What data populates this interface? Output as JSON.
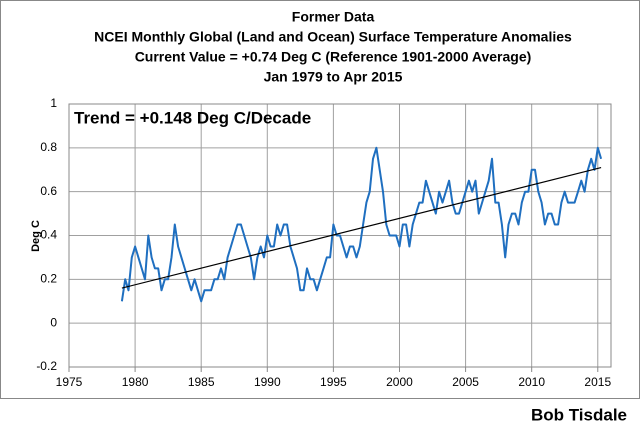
{
  "chart_data": {
    "type": "line",
    "title": [
      "Former Data",
      "NCEI Monthly Global (Land and Ocean) Surface Temperature Anomalies",
      "Current Value = +0.74 Deg C (Reference 1901-2000 Average)",
      "Jan 1979 to Apr 2015"
    ],
    "annotation": "Trend = +0.148 Deg C/Decade",
    "ylabel": "Deg C",
    "credit": "Bob Tisdale",
    "xlim": [
      1975,
      2016
    ],
    "xticks": [
      1975,
      1980,
      1985,
      1990,
      1995,
      2000,
      2005,
      2010,
      2015
    ],
    "ylim": [
      -0.2,
      1
    ],
    "yticks": [
      -0.2,
      0,
      0.2,
      0.4,
      0.6,
      0.8,
      1
    ],
    "grid": true,
    "series": [
      {
        "color": "#1f6fc0",
        "x": [
          1979,
          1979.25,
          1979.5,
          1979.75,
          1980,
          1980.25,
          1980.5,
          1980.75,
          1981,
          1981.25,
          1981.5,
          1981.75,
          1982,
          1982.25,
          1982.5,
          1982.75,
          1983,
          1983.25,
          1983.5,
          1983.75,
          1984,
          1984.25,
          1984.5,
          1984.75,
          1985,
          1985.25,
          1985.5,
          1985.75,
          1986,
          1986.25,
          1986.5,
          1986.75,
          1987,
          1987.25,
          1987.5,
          1987.75,
          1988,
          1988.25,
          1988.5,
          1988.75,
          1989,
          1989.25,
          1989.5,
          1989.75,
          1990,
          1990.25,
          1990.5,
          1990.75,
          1991,
          1991.25,
          1991.5,
          1991.75,
          1992,
          1992.25,
          1992.5,
          1992.75,
          1993,
          1993.25,
          1993.5,
          1993.75,
          1994,
          1994.25,
          1994.5,
          1994.75,
          1995,
          1995.25,
          1995.5,
          1995.75,
          1996,
          1996.25,
          1996.5,
          1996.75,
          1997,
          1997.25,
          1997.5,
          1997.75,
          1998,
          1998.25,
          1998.5,
          1998.75,
          1999,
          1999.25,
          1999.5,
          1999.75,
          2000,
          2000.25,
          2000.5,
          2000.75,
          2001,
          2001.25,
          2001.5,
          2001.75,
          2002,
          2002.25,
          2002.5,
          2002.75,
          2003,
          2003.25,
          2003.5,
          2003.75,
          2004,
          2004.25,
          2004.5,
          2004.75,
          2005,
          2005.25,
          2005.5,
          2005.75,
          2006,
          2006.25,
          2006.5,
          2006.75,
          2007,
          2007.25,
          2007.5,
          2007.75,
          2008,
          2008.25,
          2008.5,
          2008.75,
          2009,
          2009.25,
          2009.5,
          2009.75,
          2010,
          2010.25,
          2010.5,
          2010.75,
          2011,
          2011.25,
          2011.5,
          2011.75,
          2012,
          2012.25,
          2012.5,
          2012.75,
          2013,
          2013.25,
          2013.5,
          2013.75,
          2014,
          2014.25,
          2014.5,
          2014.75,
          2015,
          2015.25
        ],
        "values": [
          0.1,
          0.2,
          0.15,
          0.3,
          0.35,
          0.3,
          0.25,
          0.2,
          0.4,
          0.3,
          0.25,
          0.25,
          0.15,
          0.2,
          0.2,
          0.3,
          0.45,
          0.35,
          0.3,
          0.25,
          0.2,
          0.15,
          0.2,
          0.15,
          0.1,
          0.15,
          0.15,
          0.15,
          0.2,
          0.2,
          0.25,
          0.2,
          0.3,
          0.35,
          0.4,
          0.45,
          0.45,
          0.4,
          0.35,
          0.3,
          0.2,
          0.3,
          0.35,
          0.3,
          0.4,
          0.35,
          0.35,
          0.45,
          0.4,
          0.45,
          0.45,
          0.35,
          0.3,
          0.25,
          0.15,
          0.15,
          0.25,
          0.2,
          0.2,
          0.15,
          0.2,
          0.25,
          0.3,
          0.3,
          0.45,
          0.4,
          0.4,
          0.35,
          0.3,
          0.35,
          0.35,
          0.3,
          0.35,
          0.45,
          0.55,
          0.6,
          0.75,
          0.8,
          0.7,
          0.6,
          0.45,
          0.4,
          0.4,
          0.4,
          0.35,
          0.45,
          0.45,
          0.35,
          0.45,
          0.5,
          0.55,
          0.55,
          0.65,
          0.6,
          0.55,
          0.5,
          0.6,
          0.55,
          0.6,
          0.65,
          0.55,
          0.5,
          0.5,
          0.55,
          0.6,
          0.65,
          0.6,
          0.65,
          0.5,
          0.55,
          0.6,
          0.65,
          0.75,
          0.55,
          0.55,
          0.45,
          0.3,
          0.45,
          0.5,
          0.5,
          0.45,
          0.55,
          0.6,
          0.6,
          0.7,
          0.7,
          0.6,
          0.55,
          0.45,
          0.5,
          0.5,
          0.45,
          0.45,
          0.55,
          0.6,
          0.55,
          0.55,
          0.55,
          0.6,
          0.65,
          0.6,
          0.7,
          0.75,
          0.7,
          0.8,
          0.75
        ]
      },
      {
        "color": "#000000",
        "x": [
          1979,
          2015.25
        ],
        "values": [
          0.16,
          0.71
        ]
      }
    ]
  }
}
